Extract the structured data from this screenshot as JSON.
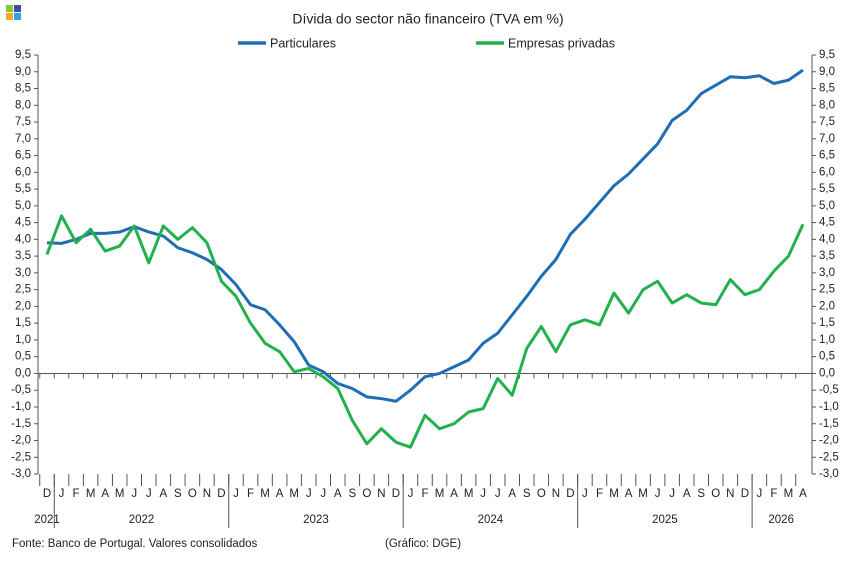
{
  "chart_data": {
    "type": "line",
    "title": "Dívida do sector não financeiro (TVA em %)",
    "categories": [
      "D",
      "J",
      "F",
      "M",
      "A",
      "M",
      "J",
      "J",
      "A",
      "S",
      "O",
      "N",
      "D",
      "J",
      "F",
      "M",
      "A",
      "M",
      "J",
      "J",
      "A",
      "S",
      "O",
      "N",
      "D",
      "J",
      "F",
      "M",
      "A",
      "M",
      "J",
      "J",
      "A",
      "S",
      "O",
      "N",
      "D",
      "J",
      "F",
      "M",
      "A",
      "M",
      "J",
      "J",
      "A",
      "S",
      "O",
      "N",
      "D",
      "J",
      "F",
      "M",
      "A"
    ],
    "years": [
      "2021",
      "2022",
      "2023",
      "2024",
      "2025",
      "2026"
    ],
    "series": [
      {
        "name": "Particulares",
        "color": "#1f6db5",
        "values": [
          3.9,
          3.88,
          4.0,
          4.18,
          4.18,
          4.22,
          4.38,
          4.22,
          4.1,
          3.75,
          3.6,
          3.4,
          3.1,
          2.65,
          2.05,
          1.9,
          1.45,
          0.95,
          0.25,
          0.05,
          -0.3,
          -0.45,
          -0.7,
          -0.75,
          -0.83,
          -0.5,
          -0.1,
          0.0,
          0.2,
          0.4,
          0.9,
          1.2,
          1.75,
          2.3,
          2.9,
          3.4,
          4.15,
          4.6,
          5.1,
          5.6,
          5.95,
          6.4,
          6.85,
          7.55,
          7.85,
          8.35,
          8.6,
          8.85,
          8.82,
          8.88,
          8.65,
          8.75,
          9.05
        ]
      },
      {
        "name": "Empresas privadas",
        "color": "#22b14c",
        "values": [
          3.55,
          4.7,
          3.9,
          4.3,
          3.65,
          3.8,
          4.4,
          3.3,
          4.4,
          4.0,
          4.35,
          3.9,
          2.75,
          2.3,
          1.5,
          0.9,
          0.65,
          0.05,
          0.15,
          -0.1,
          -0.45,
          -1.4,
          -2.1,
          -1.65,
          -2.05,
          -2.2,
          -1.25,
          -1.65,
          -1.5,
          -1.15,
          -1.05,
          -0.15,
          -0.65,
          0.75,
          1.4,
          0.65,
          1.45,
          1.6,
          1.45,
          2.4,
          1.8,
          2.5,
          2.75,
          2.1,
          2.35,
          2.1,
          2.05,
          2.8,
          2.35,
          2.5,
          3.05,
          3.5,
          4.45
        ]
      }
    ],
    "ylim": [
      -3.0,
      9.5
    ],
    "yticks": [
      {
        "value": 9.5,
        "label": "9,5"
      },
      {
        "value": 9.0,
        "label": "9,0"
      },
      {
        "value": 8.5,
        "label": "8,5"
      },
      {
        "value": 8.0,
        "label": "8,0"
      },
      {
        "value": 7.5,
        "label": "7,5"
      },
      {
        "value": 7.0,
        "label": "7,0"
      },
      {
        "value": 6.5,
        "label": "6,5"
      },
      {
        "value": 6.0,
        "label": "6,0"
      },
      {
        "value": 5.5,
        "label": "5,5"
      },
      {
        "value": 5.0,
        "label": "5,0"
      },
      {
        "value": 4.5,
        "label": "4,5"
      },
      {
        "value": 4.0,
        "label": "4,0"
      },
      {
        "value": 3.5,
        "label": "3,5"
      },
      {
        "value": 3.0,
        "label": "3,0"
      },
      {
        "value": 2.5,
        "label": "2,5"
      },
      {
        "value": 2.0,
        "label": "2,0"
      },
      {
        "value": 1.5,
        "label": "1,5"
      },
      {
        "value": 1.0,
        "label": "1,0"
      },
      {
        "value": 0.5,
        "label": "0,5"
      },
      {
        "value": 0.0,
        "label": "0,0"
      },
      {
        "value": -0.5,
        "label": "-0,5"
      },
      {
        "value": -1.0,
        "label": "-1,0"
      },
      {
        "value": -1.5,
        "label": "-1,5"
      },
      {
        "value": -2.0,
        "label": "-2,0"
      },
      {
        "value": -2.5,
        "label": "-2,5"
      },
      {
        "value": -3.0,
        "label": "-3,0"
      }
    ],
    "y2lim": [
      -3.0,
      9.5
    ],
    "y2ticks": [
      {
        "value": 9.5,
        "label": "9,5"
      },
      {
        "value": 9.0,
        "label": "9,0"
      },
      {
        "value": 8.5,
        "label": "8,5"
      },
      {
        "value": 8.0,
        "label": "8,0"
      },
      {
        "value": 7.5,
        "label": "7,5"
      },
      {
        "value": 7.0,
        "label": "7,0"
      },
      {
        "value": 6.5,
        "label": "6,5"
      },
      {
        "value": 6.0,
        "label": "6,0"
      },
      {
        "value": 5.5,
        "label": "5,5"
      },
      {
        "value": 5.0,
        "label": "5,0"
      },
      {
        "value": 4.5,
        "label": "4,5"
      },
      {
        "value": 4.0,
        "label": "4,0"
      },
      {
        "value": 3.5,
        "label": "3,5"
      },
      {
        "value": 3.0,
        "label": "3,0"
      },
      {
        "value": 2.5,
        "label": "2,5"
      },
      {
        "value": 2.0,
        "label": "2,0"
      },
      {
        "value": 1.5,
        "label": "1,5"
      },
      {
        "value": 1.0,
        "label": "1,0"
      },
      {
        "value": 0.5,
        "label": "0,5"
      },
      {
        "value": 0.0,
        "label": "0,0"
      },
      {
        "value": -0.5,
        "label": "-0,5"
      },
      {
        "value": -1.0,
        "label": "-1,0"
      },
      {
        "value": -1.5,
        "label": "-1,5"
      },
      {
        "value": -2.0,
        "label": "-2,0"
      },
      {
        "value": -2.5,
        "label": "-2,5"
      },
      {
        "value": -3.0,
        "label": "-3,0"
      }
    ],
    "grid": false,
    "source": "Fonte: Banco de Portugal. Valores consolidados",
    "credit": "(Gráfico: DGE)"
  }
}
